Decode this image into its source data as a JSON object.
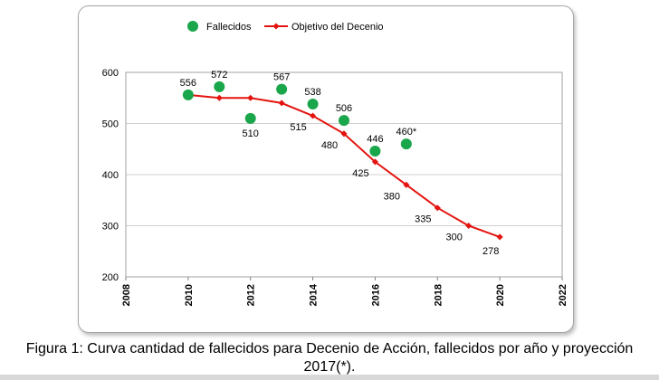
{
  "chart_data": {
    "type": "line",
    "x_range": [
      2008,
      2022
    ],
    "x_ticks": [
      2008,
      2010,
      2012,
      2014,
      2016,
      2018,
      2020,
      2022
    ],
    "y_range": [
      200,
      600
    ],
    "y_ticks": [
      200,
      300,
      400,
      500,
      600
    ],
    "grid": "horizontal",
    "legend_position": "top",
    "series": [
      {
        "name": "Fallecidos",
        "kind": "scatter",
        "color": "#1aa64a",
        "points": [
          {
            "x": 2010,
            "y": 556,
            "label": "556",
            "label_pos": "above"
          },
          {
            "x": 2011,
            "y": 572,
            "label": "572",
            "label_pos": "above"
          },
          {
            "x": 2012,
            "y": 510,
            "label": "510",
            "label_pos": "below"
          },
          {
            "x": 2013,
            "y": 567,
            "label": "567",
            "label_pos": "above"
          },
          {
            "x": 2014,
            "y": 538,
            "label": "538",
            "label_pos": "above"
          },
          {
            "x": 2015,
            "y": 506,
            "label": "506",
            "label_pos": "above"
          },
          {
            "x": 2016,
            "y": 446,
            "label": "446",
            "label_pos": "above"
          },
          {
            "x": 2017,
            "y": 460,
            "label": "460*",
            "label_pos": "above"
          }
        ]
      },
      {
        "name": "Objetivo del Decenio",
        "kind": "line",
        "color": "#e3140f",
        "points": [
          {
            "x": 2010,
            "y": 556,
            "label": ""
          },
          {
            "x": 2011,
            "y": 550,
            "label": ""
          },
          {
            "x": 2012,
            "y": 550,
            "label": ""
          },
          {
            "x": 2013,
            "y": 540,
            "label": ""
          },
          {
            "x": 2014,
            "y": 515,
            "label": "515",
            "label_pos": "below-left"
          },
          {
            "x": 2015,
            "y": 480,
            "label": "480",
            "label_pos": "below-left"
          },
          {
            "x": 2016,
            "y": 425,
            "label": "425",
            "label_pos": "below-left"
          },
          {
            "x": 2017,
            "y": 380,
            "label": "380",
            "label_pos": "below-left"
          },
          {
            "x": 2018,
            "y": 335,
            "label": "335",
            "label_pos": "below-left"
          },
          {
            "x": 2019,
            "y": 300,
            "label": "300",
            "label_pos": "below-left"
          },
          {
            "x": 2020,
            "y": 278,
            "label": "278",
            "label_pos": "below"
          }
        ]
      }
    ]
  },
  "caption": "Figura 1: Curva cantidad de fallecidos para Decenio de Acción, fallecidos por año y proyección 2017(*)."
}
